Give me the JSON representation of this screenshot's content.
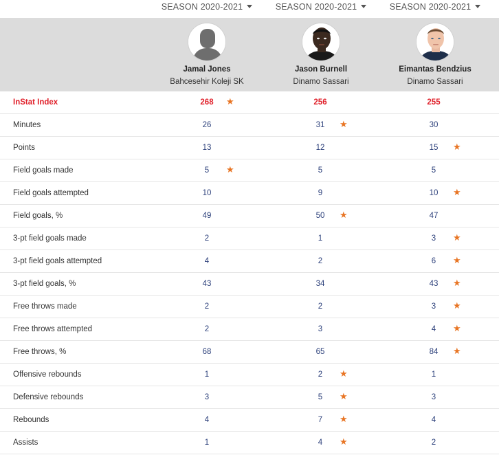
{
  "seasons": [
    {
      "label": "SEASON 2020-2021"
    },
    {
      "label": "SEASON 2020-2021"
    },
    {
      "label": "SEASON 2020-2021"
    }
  ],
  "players": [
    {
      "name": "Jamal Jones",
      "team": "Bahcesehir Koleji SK",
      "photo": "placeholder-silhouette"
    },
    {
      "name": "Jason Burnell",
      "team": "Dinamo Sassari",
      "photo": "player-photo"
    },
    {
      "name": "Eimantas Bendzius",
      "team": "Dinamo Sassari",
      "photo": "player-photo"
    }
  ],
  "colors": {
    "accent_red": "#e0202a",
    "star_orange": "#e87524",
    "value_blue": "#2b3f7a",
    "header_gray": "#dcdcdc"
  },
  "stats": [
    {
      "label": "InStat Index",
      "values": [
        "268",
        "256",
        "255"
      ],
      "best": [
        true,
        false,
        false
      ]
    },
    {
      "label": "Minutes",
      "values": [
        "26",
        "31",
        "30"
      ],
      "best": [
        false,
        true,
        false
      ]
    },
    {
      "label": "Points",
      "values": [
        "13",
        "12",
        "15"
      ],
      "best": [
        false,
        false,
        true
      ]
    },
    {
      "label": "Field goals made",
      "values": [
        "5",
        "5",
        "5"
      ],
      "best": [
        true,
        false,
        false
      ]
    },
    {
      "label": "Field goals attempted",
      "values": [
        "10",
        "9",
        "10"
      ],
      "best": [
        false,
        false,
        true
      ]
    },
    {
      "label": "Field goals, %",
      "values": [
        "49",
        "50",
        "47"
      ],
      "best": [
        false,
        true,
        false
      ]
    },
    {
      "label": "3-pt field goals made",
      "values": [
        "2",
        "1",
        "3"
      ],
      "best": [
        false,
        false,
        true
      ]
    },
    {
      "label": "3-pt field goals attempted",
      "values": [
        "4",
        "2",
        "6"
      ],
      "best": [
        false,
        false,
        true
      ]
    },
    {
      "label": "3-pt field goals, %",
      "values": [
        "43",
        "34",
        "43"
      ],
      "best": [
        false,
        false,
        true
      ]
    },
    {
      "label": "Free throws made",
      "values": [
        "2",
        "2",
        "3"
      ],
      "best": [
        false,
        false,
        true
      ]
    },
    {
      "label": "Free throws attempted",
      "values": [
        "2",
        "3",
        "4"
      ],
      "best": [
        false,
        false,
        true
      ]
    },
    {
      "label": "Free throws, %",
      "values": [
        "68",
        "65",
        "84"
      ],
      "best": [
        false,
        false,
        true
      ]
    },
    {
      "label": "Offensive rebounds",
      "values": [
        "1",
        "2",
        "1"
      ],
      "best": [
        false,
        true,
        false
      ]
    },
    {
      "label": "Defensive rebounds",
      "values": [
        "3",
        "5",
        "3"
      ],
      "best": [
        false,
        true,
        false
      ]
    },
    {
      "label": "Rebounds",
      "values": [
        "4",
        "7",
        "4"
      ],
      "best": [
        false,
        true,
        false
      ]
    },
    {
      "label": "Assists",
      "values": [
        "1",
        "4",
        "2"
      ],
      "best": [
        false,
        true,
        false
      ]
    }
  ],
  "star_glyph": "★"
}
